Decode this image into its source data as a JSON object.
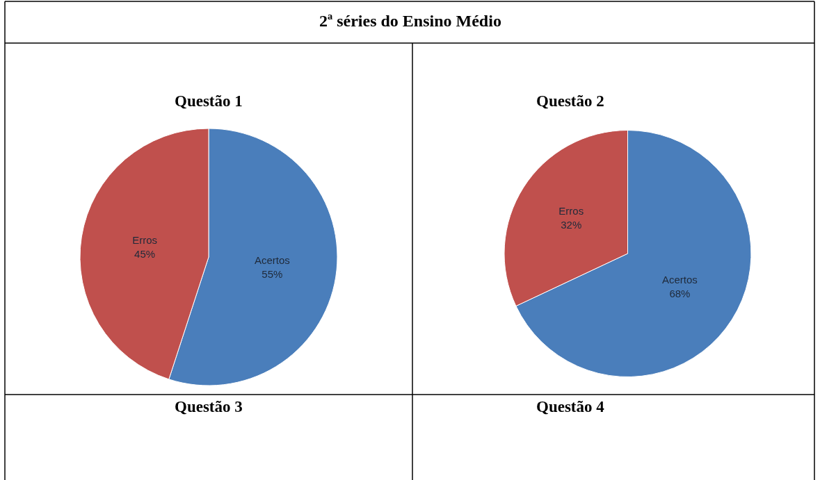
{
  "chart_data": [
    {
      "type": "other",
      "title": "2ª séries do Ensino Médio"
    },
    {
      "type": "pie",
      "title": "Questão 1",
      "categories": [
        "Acertos",
        "Erros"
      ],
      "values": [
        55,
        45
      ],
      "value_labels": [
        "55%",
        "45%"
      ],
      "colors": [
        "#4a7ebb",
        "#c0504d"
      ]
    },
    {
      "type": "pie",
      "title": "Questão 2",
      "categories": [
        "Acertos",
        "Erros"
      ],
      "values": [
        68,
        32
      ],
      "value_labels": [
        "68%",
        "32%"
      ],
      "colors": [
        "#4a7ebb",
        "#c0504d"
      ]
    },
    {
      "type": "other",
      "title": "Questão 3"
    },
    {
      "type": "other",
      "title": "Questão 4"
    }
  ]
}
